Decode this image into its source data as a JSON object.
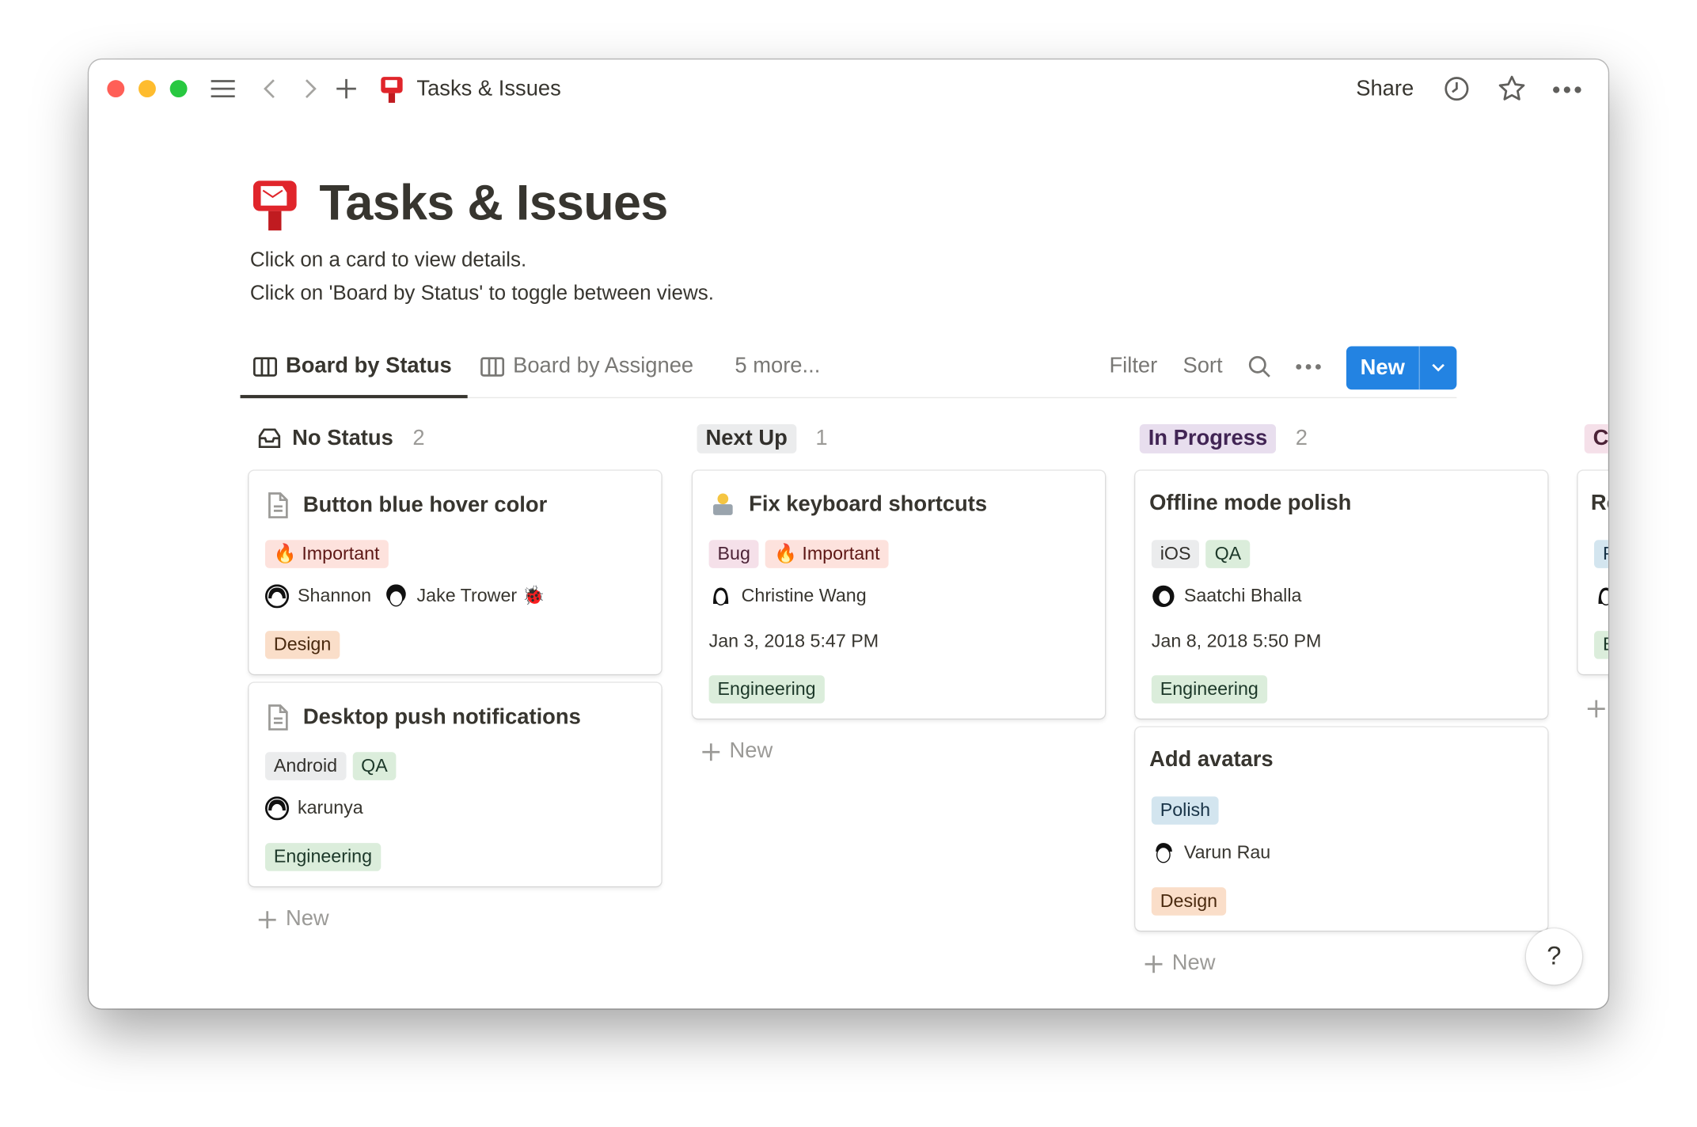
{
  "titlebar": {
    "title": "Tasks & Issues",
    "share": "Share"
  },
  "page": {
    "title": "Tasks & Issues",
    "description": [
      "Click on a card to view details.",
      "Click on 'Board by Status' to toggle between views."
    ]
  },
  "views": {
    "tabs": [
      {
        "label": "Board by Status",
        "active": true
      },
      {
        "label": "Board by Assignee"
      }
    ],
    "more": "5 more...",
    "filter": "Filter",
    "sort": "Sort",
    "new": "New"
  },
  "accent": "#2383e2",
  "columns": [
    {
      "title": "No Status",
      "count": "2",
      "new": "New",
      "cards": [
        {
          "title": "Button blue hover color",
          "tags": [
            "🔥 Important"
          ],
          "people": [
            "Shannon",
            "Jake Trower 🐞"
          ],
          "team": "Design"
        },
        {
          "title": "Desktop push notifications",
          "tags": [
            "Android",
            "QA"
          ],
          "people": [
            "karunya"
          ],
          "team": "Engineering"
        }
      ]
    },
    {
      "title": "Next Up",
      "count": "1",
      "new": "New",
      "cards": [
        {
          "title": "Fix keyboard shortcuts",
          "tags": [
            "Bug",
            "🔥 Important"
          ],
          "people": [
            "Christine Wang"
          ],
          "date": "Jan 3, 2018 5:47 PM",
          "team": "Engineering"
        }
      ]
    },
    {
      "title": "In Progress",
      "count": "2",
      "new": "New",
      "cards": [
        {
          "title": "Offline mode polish",
          "tags": [
            "iOS",
            "QA"
          ],
          "people": [
            "Saatchi Bhalla"
          ],
          "date": "Jan 8, 2018 5:50 PM",
          "team": "Engineering"
        },
        {
          "title": "Add avatars",
          "tags": [
            "Polish"
          ],
          "people": [
            "Varun Rau"
          ],
          "team": "Design"
        }
      ]
    },
    {
      "title": "C",
      "cards": [
        {
          "title": "Re",
          "tags": [
            "P"
          ],
          "team": "E"
        }
      ]
    }
  ],
  "help": "?"
}
